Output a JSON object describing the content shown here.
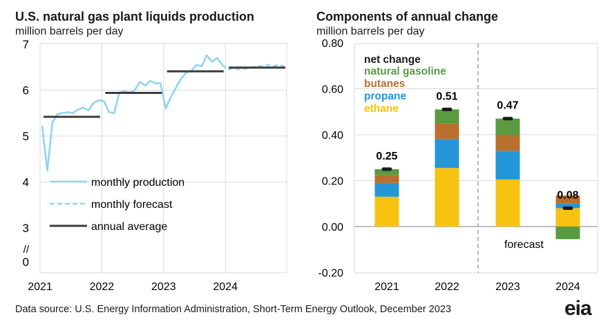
{
  "left_chart": {
    "title": "U.S. natural gas plant liquids production",
    "subtitle": "million barrels per day"
  },
  "right_chart": {
    "title": "Components of annual change",
    "subtitle": "million barrels per day"
  },
  "source": "Data source: U.S. Energy Information Administration, Short-Term Energy Outlook, December 2023",
  "logo_text": "eia",
  "colors": {
    "monthly": "#8fd4f0",
    "annual": "#3c3c3c",
    "ethane": "#f8c210",
    "propane": "#2596d8",
    "butanes": "#b9702e",
    "natural_gasoline": "#5a9a42",
    "net_change": "#1a1a1a",
    "grid": "#d9d9d9"
  },
  "chart_data": [
    {
      "type": "line",
      "title": "U.S. natural gas plant liquids production",
      "ylabel": "million barrels per day",
      "ylim": [
        3,
        7
      ],
      "yticks": [
        "7",
        "6",
        "5",
        "4",
        "3",
        "0"
      ],
      "axis_break": "//",
      "xticks": [
        "2021",
        "2022",
        "2023",
        "2024"
      ],
      "x_start": "2021-01",
      "legend": [
        "monthly production",
        "monthly forecast",
        "annual average"
      ],
      "monthly_production": [
        5.22,
        4.25,
        5.3,
        5.48,
        5.5,
        5.52,
        5.5,
        5.58,
        5.62,
        5.56,
        5.72,
        5.78,
        5.76,
        5.52,
        5.5,
        5.95,
        5.98,
        5.95,
        6.0,
        6.18,
        6.1,
        6.2,
        6.15,
        6.15,
        5.6,
        5.85,
        6.05,
        6.25,
        6.38,
        6.42,
        6.55,
        6.52,
        6.76,
        6.62,
        6.7,
        6.55
      ],
      "monthly_forecast": [
        6.55,
        6.45,
        6.47,
        6.46,
        6.46,
        6.48,
        6.5,
        6.52,
        6.52,
        6.55,
        6.52,
        6.55,
        6.52
      ],
      "annual_average": [
        {
          "year": "2021",
          "value": 5.42
        },
        {
          "year": "2022",
          "value": 5.94
        },
        {
          "year": "2023",
          "value": 6.41
        },
        {
          "year": "2024",
          "value": 6.49
        }
      ]
    },
    {
      "type": "bar",
      "stacked": true,
      "title": "Components of annual change",
      "ylabel": "million barrels per day",
      "categories": [
        "2021",
        "2022",
        "2023",
        "2024"
      ],
      "ylim": [
        -0.2,
        0.8
      ],
      "yticks": [
        "0.80",
        "0.60",
        "0.40",
        "0.20",
        "0.00",
        "-0.20"
      ],
      "forecast_label": "forecast",
      "series": [
        {
          "name": "ethane",
          "values": [
            0.13,
            0.255,
            0.205,
            0.08
          ]
        },
        {
          "name": "propane",
          "values": [
            0.06,
            0.125,
            0.125,
            0.02
          ]
        },
        {
          "name": "butanes",
          "values": [
            0.035,
            0.07,
            0.07,
            0.035
          ]
        },
        {
          "name": "natural gasoline",
          "values": [
            0.025,
            0.06,
            0.07,
            -0.055
          ]
        }
      ],
      "net_change": {
        "name": "net change",
        "values": [
          0.25,
          0.51,
          0.47,
          0.08
        ],
        "labels": [
          "0.25",
          "0.51",
          "0.47",
          "0.08"
        ]
      }
    }
  ]
}
